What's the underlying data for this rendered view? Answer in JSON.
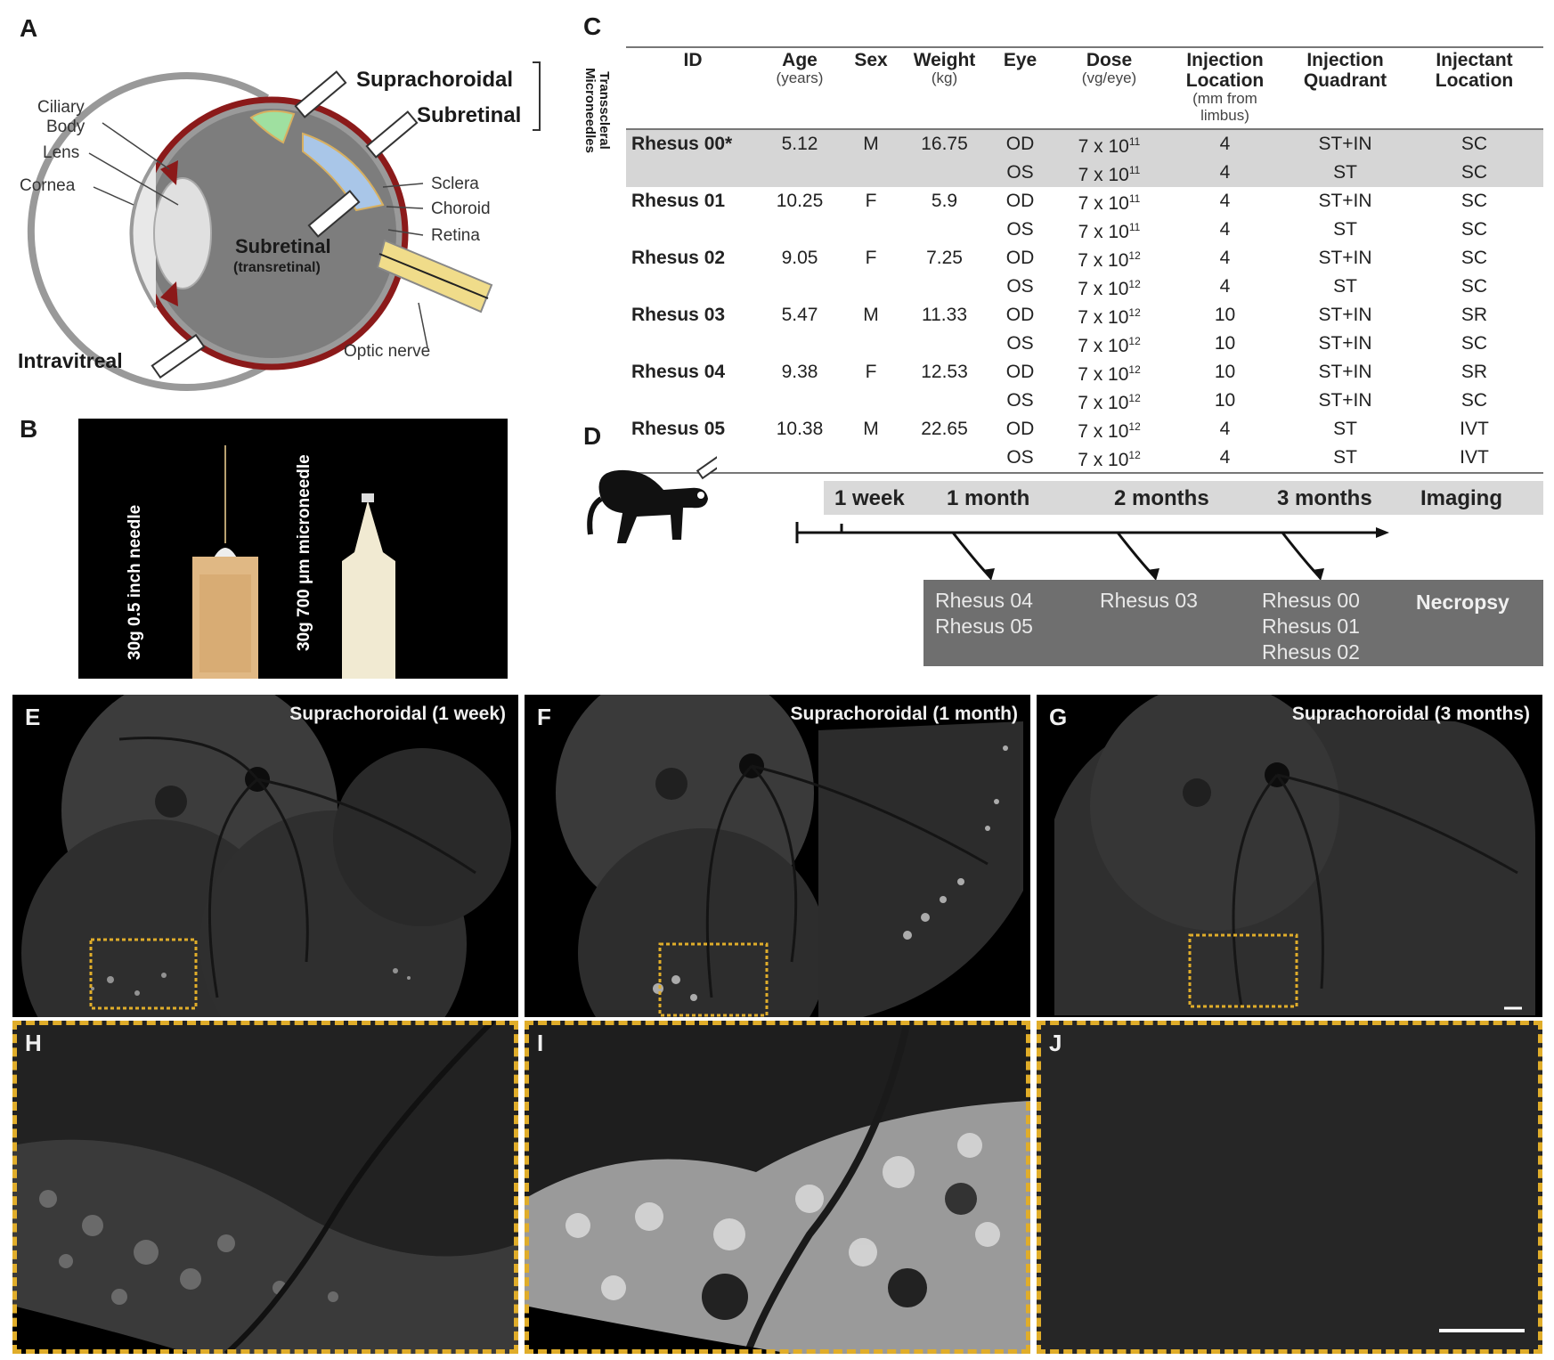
{
  "panel_labels": {
    "a": "A",
    "b": "B",
    "c": "C",
    "d": "D",
    "e": "E",
    "f": "F",
    "g": "G",
    "h": "H",
    "i": "I",
    "j": "J"
  },
  "panel_a": {
    "routes": {
      "suprachoroidal": "Suprachoroidal",
      "subretinal": "Subretinal",
      "transscleral_microneedles": "Transscleral Microneedles",
      "subretinal_transretinal": "Subretinal",
      "transretinal": "(transretinal)",
      "intravitreal": "Intravitreal"
    },
    "anatomy": {
      "ciliary": "Ciliary",
      "body": "Body",
      "lens": "Lens",
      "cornea": "Cornea",
      "sclera": "Sclera",
      "choroid": "Choroid",
      "retina": "Retina",
      "optic_nerve": "Optic nerve"
    }
  },
  "panel_b": {
    "left_needle": "30g  0.5 inch needle",
    "right_needle": "30g  700 μm microneedle"
  },
  "panel_c": {
    "headers": [
      {
        "main": "ID",
        "sub": ""
      },
      {
        "main": "Age",
        "sub": "(years)"
      },
      {
        "main": "Sex",
        "sub": ""
      },
      {
        "main": "Weight",
        "sub": "(kg)"
      },
      {
        "main": "Eye",
        "sub": ""
      },
      {
        "main": "Dose",
        "sub": "(vg/eye)"
      },
      {
        "main": "Injection Location",
        "sub": "(mm from limbus)"
      },
      {
        "main": "Injection Quadrant",
        "sub": ""
      },
      {
        "main": "Injectant Location",
        "sub": ""
      }
    ],
    "rows": [
      {
        "id": "Rhesus 00*",
        "age": "5.12",
        "sex": "M",
        "weight": "16.75",
        "eye": "OD",
        "dose_base": "7 x 10",
        "dose_exp": "11",
        "loc": "4",
        "quad": "ST+IN",
        "inj": "SC",
        "shade": true
      },
      {
        "id": "",
        "age": "",
        "sex": "",
        "weight": "",
        "eye": "OS",
        "dose_base": "7 x 10",
        "dose_exp": "11",
        "loc": "4",
        "quad": "ST",
        "inj": "SC",
        "shade": true
      },
      {
        "id": "Rhesus 01",
        "age": "10.25",
        "sex": "F",
        "weight": "5.9",
        "eye": "OD",
        "dose_base": "7 x 10",
        "dose_exp": "11",
        "loc": "4",
        "quad": "ST+IN",
        "inj": "SC",
        "shade": false
      },
      {
        "id": "",
        "age": "",
        "sex": "",
        "weight": "",
        "eye": "OS",
        "dose_base": "7 x 10",
        "dose_exp": "11",
        "loc": "4",
        "quad": "ST",
        "inj": "SC",
        "shade": false
      },
      {
        "id": "Rhesus 02",
        "age": "9.05",
        "sex": "F",
        "weight": "7.25",
        "eye": "OD",
        "dose_base": "7 x 10",
        "dose_exp": "12",
        "loc": "4",
        "quad": "ST+IN",
        "inj": "SC",
        "shade": false
      },
      {
        "id": "",
        "age": "",
        "sex": "",
        "weight": "",
        "eye": "OS",
        "dose_base": "7 x 10",
        "dose_exp": "12",
        "loc": "4",
        "quad": "ST",
        "inj": "SC",
        "shade": false
      },
      {
        "id": "Rhesus 03",
        "age": "5.47",
        "sex": "M",
        "weight": "11.33",
        "eye": "OD",
        "dose_base": "7 x 10",
        "dose_exp": "12",
        "loc": "10",
        "quad": "ST+IN",
        "inj": "SR",
        "shade": false
      },
      {
        "id": "",
        "age": "",
        "sex": "",
        "weight": "",
        "eye": "OS",
        "dose_base": "7 x 10",
        "dose_exp": "12",
        "loc": "10",
        "quad": "ST+IN",
        "inj": "SC",
        "shade": false
      },
      {
        "id": "Rhesus 04",
        "age": "9.38",
        "sex": "F",
        "weight": "12.53",
        "eye": "OD",
        "dose_base": "7 x 10",
        "dose_exp": "12",
        "loc": "10",
        "quad": "ST+IN",
        "inj": "SR",
        "shade": false
      },
      {
        "id": "",
        "age": "",
        "sex": "",
        "weight": "",
        "eye": "OS",
        "dose_base": "7 x 10",
        "dose_exp": "12",
        "loc": "10",
        "quad": "ST+IN",
        "inj": "SC",
        "shade": false
      },
      {
        "id": "Rhesus 05",
        "age": "10.38",
        "sex": "M",
        "weight": "22.65",
        "eye": "OD",
        "dose_base": "7 x 10",
        "dose_exp": "12",
        "loc": "4",
        "quad": "ST",
        "inj": "IVT",
        "shade": false
      },
      {
        "id": "",
        "age": "",
        "sex": "",
        "weight": "",
        "eye": "OS",
        "dose_base": "7 x 10",
        "dose_exp": "12",
        "loc": "4",
        "quad": "ST",
        "inj": "IVT",
        "shade": false
      }
    ]
  },
  "panel_d": {
    "timepoints": [
      "1 week",
      "1 month",
      "2 months",
      "3 months"
    ],
    "imaging": "Imaging",
    "necropsy": "Necropsy",
    "necropsy_groups": [
      [
        "Rhesus 04",
        "Rhesus 05"
      ],
      [
        "Rhesus 03"
      ],
      [
        "Rhesus 00",
        "Rhesus 01",
        "Rhesus 02"
      ]
    ]
  },
  "fundus": {
    "e_title": "Suprachoroidal (1 week)",
    "f_title": "Suprachoroidal (1 month)",
    "g_title": "Suprachoroidal (3 months)"
  },
  "colors": {
    "highlight_box": "#e0ad2a",
    "sclera_red": "#8b1a1a",
    "suprachoroidal_green": "#9fe0a0",
    "subretinal_blue": "#a9c6e8",
    "retina_yellow": "#f0dc8a"
  }
}
